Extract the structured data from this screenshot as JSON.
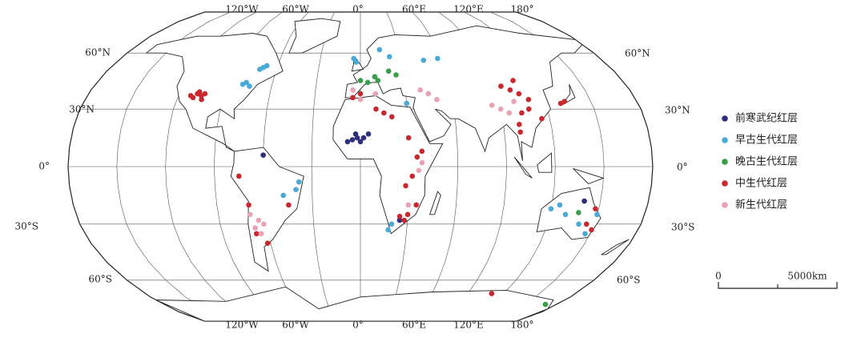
{
  "map": {
    "top_longitude_labels": [
      "120°W",
      "60°W",
      "0°",
      "60°E",
      "120°E",
      "180°"
    ],
    "bottom_longitude_labels": [
      "120°W",
      "60°W",
      "0°",
      "60°E",
      "120°E",
      "180°"
    ],
    "left_latitude_labels": [
      "60°N",
      "30°N",
      "0°",
      "30°S",
      "60°S"
    ],
    "right_latitude_labels": [
      "60°N",
      "30°N",
      "0°",
      "30°S",
      "60°S"
    ],
    "legend": [
      {
        "name": "前寒武纪红层",
        "color": "#2e2f7c",
        "points": [
          [
            -5,
            14
          ],
          [
            -2,
            15
          ],
          [
            0,
            13
          ],
          [
            -8,
            13
          ],
          [
            2,
            15
          ],
          [
            5,
            17
          ],
          [
            -3,
            17
          ],
          [
            -60,
            6
          ],
          [
            25,
            -28
          ],
          [
            140,
            -18
          ]
        ]
      },
      {
        "name": "早古生代红层",
        "color": "#4aa9d6",
        "points": [
          [
            -75,
            42
          ],
          [
            -78,
            44
          ],
          [
            -80,
            43
          ],
          [
            -70,
            52
          ],
          [
            -68,
            53
          ],
          [
            -72,
            51
          ],
          [
            -3,
            55
          ],
          [
            -5,
            57
          ],
          [
            15,
            62
          ],
          [
            22,
            58
          ],
          [
            47,
            56
          ],
          [
            58,
            57
          ],
          [
            30,
            33
          ],
          [
            -48,
            -15
          ],
          [
            -40,
            -12
          ],
          [
            -38,
            -8
          ],
          [
            20,
            -30
          ],
          [
            18,
            -33
          ],
          [
            120,
            -22
          ],
          [
            125,
            -20
          ],
          [
            130,
            -25
          ],
          [
            140,
            -30
          ],
          [
            147,
            -35
          ],
          [
            150,
            -25
          ]
        ]
      },
      {
        "name": "晚古生代红层",
        "color": "#3a9e48",
        "points": [
          [
            0,
            45
          ],
          [
            5,
            44
          ],
          [
            10,
            47
          ],
          [
            20,
            50
          ],
          [
            25,
            48
          ],
          [
            12,
            45
          ],
          [
            138,
            -24
          ],
          [
            170,
            -75
          ]
        ]
      },
      {
        "name": "中生代红层",
        "color": "#c8282f",
        "points": [
          [
            -108,
            38
          ],
          [
            -105,
            37
          ],
          [
            -110,
            36
          ],
          [
            -103,
            38
          ],
          [
            -107,
            39
          ],
          [
            -112,
            37
          ],
          [
            -104,
            35
          ],
          [
            133,
            34
          ],
          [
            130,
            33
          ],
          [
            100,
            40
          ],
          [
            105,
            38
          ],
          [
            95,
            42
          ],
          [
            110,
            35
          ],
          [
            108,
            30
          ],
          [
            103,
            28
          ],
          [
            115,
            25
          ],
          [
            100,
            22
          ],
          [
            105,
            45
          ],
          [
            100,
            18
          ],
          [
            15,
            28
          ],
          [
            20,
            26
          ],
          [
            10,
            30
          ],
          [
            30,
            15
          ],
          [
            35,
            5
          ],
          [
            38,
            8
          ],
          [
            32,
            -5
          ],
          [
            28,
            -10
          ],
          [
            30,
            -25
          ],
          [
            28,
            -28
          ],
          [
            25,
            -26
          ],
          [
            35,
            -20
          ],
          [
            -70,
            -20
          ],
          [
            -75,
            -5
          ],
          [
            -68,
            -35
          ],
          [
            -62,
            -40
          ],
          [
            -45,
            -20
          ],
          [
            0,
            38
          ],
          [
            -5,
            36
          ],
          [
            145,
            -30
          ],
          [
            150,
            -33
          ],
          [
            148,
            -22
          ],
          [
            110,
            -68
          ]
        ]
      },
      {
        "name": "新生代红层",
        "color": "#eaa3b4",
        "points": [
          [
            -5,
            40
          ],
          [
            10,
            38
          ],
          [
            0,
            35
          ],
          [
            45,
            38
          ],
          [
            40,
            40
          ],
          [
            50,
            35
          ],
          [
            90,
            30
          ],
          [
            85,
            32
          ],
          [
            95,
            28
          ],
          [
            100,
            34
          ],
          [
            -65,
            -28
          ],
          [
            -68,
            -32
          ],
          [
            -65,
            -35
          ],
          [
            -62,
            -30
          ],
          [
            -70,
            -25
          ],
          [
            36,
            -2
          ],
          [
            38,
            2
          ],
          [
            30,
            -20
          ]
        ]
      }
    ],
    "scale_bar": [
      "0",
      "5000km"
    ]
  }
}
